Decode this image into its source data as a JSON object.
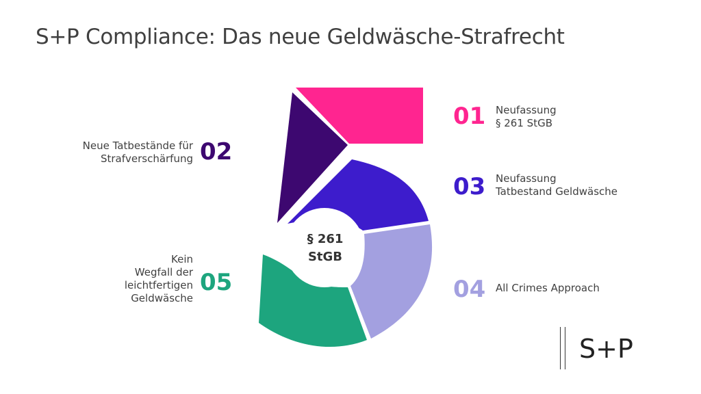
{
  "title": "S+P Compliance: Das neue Geldwäsche-Strafrecht",
  "center": {
    "line1": "§ 261",
    "line2": "StGB"
  },
  "colors": {
    "item01": "#ff2590",
    "item02": "#3d0870",
    "item03": "#3d1ccc",
    "item04": "#a3a0e0",
    "item05": "#1da57e"
  },
  "items": [
    {
      "number": "01",
      "label_lines": [
        "Neufassung",
        "§ 261 StGB"
      ]
    },
    {
      "number": "02",
      "label_lines": [
        "Neue Tatbestände für",
        "Strafverschärfung"
      ]
    },
    {
      "number": "03",
      "label_lines": [
        "Neufassung",
        "Tatbestand Geldwäsche"
      ]
    },
    {
      "number": "04",
      "label_lines": [
        "All Crimes Approach"
      ]
    },
    {
      "number": "05",
      "label_lines": [
        "Kein",
        "Wegfall der",
        "leichtfertigen",
        "Geldwäsche"
      ]
    }
  ],
  "logo": {
    "text": "S+P"
  }
}
